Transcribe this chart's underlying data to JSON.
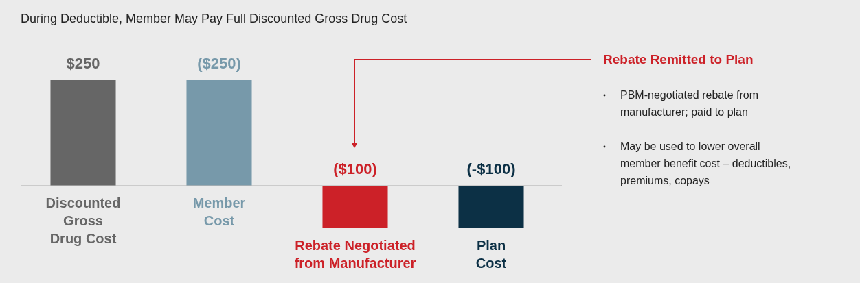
{
  "chart_data": {
    "type": "bar",
    "title": "During Deductible, Member May Pay Full Discounted Gross Drug Cost",
    "categories": [
      "Discounted\nGross\nDrug Cost",
      "Member\nCost",
      "Rebate Negotiated\nfrom Manufacturer",
      "Plan\nCost"
    ],
    "values": [
      250,
      250,
      -100,
      -100
    ],
    "colors": [
      "#666666",
      "#7799aa",
      "#cc2128",
      "#0c3045"
    ],
    "value_labels": [
      "$250",
      "($250)",
      "($100)",
      "(-$100)"
    ],
    "annotations": [
      "Rebate Remitted to Plan",
      "PBM-negotiated rebate from\nmanufacturer; paid to plan",
      "May be used to lower overall\nmember benefit cost – deductibles,\npremiums, copays"
    ]
  }
}
